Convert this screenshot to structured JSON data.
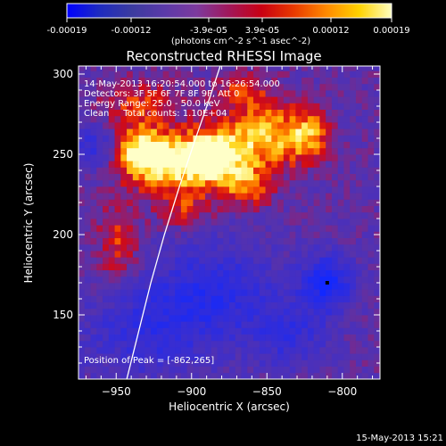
{
  "colorbar": {
    "ticks": [
      "-0.00019",
      "-0.00012",
      "-3.9e-05",
      "3.9e-05",
      "0.00012",
      "0.00019"
    ],
    "unit_label": "(photons cm^-2 s^-1 asec^-2)",
    "gradient": [
      "#0000ff",
      "#1e2bbf",
      "#3b3b9f",
      "#5b3aa9",
      "#7d3a9e",
      "#a1175a",
      "#c90012",
      "#e83a00",
      "#ff8a00",
      "#ffd200",
      "#ffffc0"
    ]
  },
  "chart_data": {
    "type": "heatmap",
    "title": "Reconstructed RHESSI Image",
    "xlabel": "Heliocentric X (arcsec)",
    "ylabel": "Heliocentric Y (arcsec)",
    "xlim": [
      -975,
      -775
    ],
    "ylim": [
      110,
      305
    ],
    "x_ticks": [
      -950,
      -900,
      -850,
      -800
    ],
    "y_ticks": [
      150,
      200,
      250,
      300
    ],
    "annotations": [
      "14-May-2013 16:20:54.000 to 16:26:54.000",
      "Detectors: 3F 5F 6F 7F 8F 9F, Att 0",
      "Energy Range: 25.0 - 50.0 keV",
      "Clean     Total counts: 1.10E+04"
    ],
    "peak_label": "Position of Peak = [-862,265]",
    "peak": {
      "x": -862,
      "y": 265
    },
    "limb_curve": [
      [
        -943,
        110
      ],
      [
        -935,
        140
      ],
      [
        -927,
        170
      ],
      [
        -918,
        200
      ],
      [
        -908,
        230
      ],
      [
        -898,
        258
      ],
      [
        -888,
        285
      ],
      [
        -881,
        305
      ]
    ],
    "marker": {
      "x": -810,
      "y": 170
    },
    "sources": [
      {
        "x": -912,
        "y": 245,
        "sx": 20,
        "sy": 13,
        "a": 1.0
      },
      {
        "x": -882,
        "y": 250,
        "sx": 14,
        "sy": 14,
        "a": 0.9
      },
      {
        "x": -935,
        "y": 253,
        "sx": 12,
        "sy": 11,
        "a": 0.75
      },
      {
        "x": -850,
        "y": 262,
        "sx": 15,
        "sy": 15,
        "a": 0.8
      },
      {
        "x": -823,
        "y": 262,
        "sx": 10,
        "sy": 12,
        "a": 0.72
      },
      {
        "x": -862,
        "y": 230,
        "sx": 11,
        "sy": 9,
        "a": 0.55
      },
      {
        "x": -948,
        "y": 195,
        "sx": 10,
        "sy": 18,
        "a": 0.5
      },
      {
        "x": -935,
        "y": 282,
        "sx": 18,
        "sy": 10,
        "a": 0.45
      },
      {
        "x": -905,
        "y": 215,
        "sx": 12,
        "sy": 8,
        "a": 0.4
      },
      {
        "x": -868,
        "y": 290,
        "sx": 12,
        "sy": 8,
        "a": 0.45
      },
      {
        "x": -885,
        "y": 165,
        "sx": 30,
        "sy": 22,
        "a": -0.6
      },
      {
        "x": -810,
        "y": 170,
        "sx": 12,
        "sy": 12,
        "a": -0.9
      },
      {
        "x": -930,
        "y": 140,
        "sx": 30,
        "sy": 20,
        "a": -0.5
      },
      {
        "x": -835,
        "y": 138,
        "sx": 18,
        "sy": 14,
        "a": -0.5
      },
      {
        "x": -965,
        "y": 255,
        "sx": 12,
        "sy": 10,
        "a": -0.5
      }
    ]
  },
  "timestamp": "15-May-2013 15:21"
}
